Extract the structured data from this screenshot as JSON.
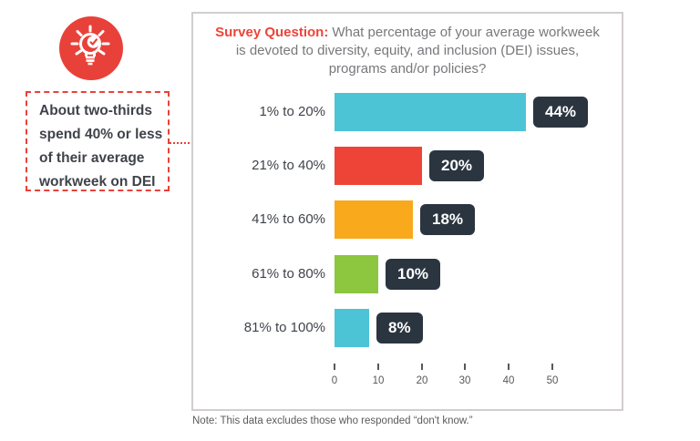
{
  "callout": {
    "icon": "lightbulb-check-icon",
    "text": "About two-thirds spend 40% or less of their average workweek on DEI"
  },
  "survey": {
    "title_prefix": "Survey Question:",
    "title_text": "What percentage of your average workweek is devoted to diversity, equity, and inclusion (DEI) issues, programs and/or policies?",
    "note": "Note: This data excludes those who responded “don't know.”"
  },
  "chart_data": {
    "type": "bar",
    "orientation": "horizontal",
    "title": "Survey Question: What percentage of your average workweek is devoted to diversity, equity, and inclusion (DEI) issues, programs and/or policies?",
    "categories": [
      "1% to 20%",
      "21% to 40%",
      "41% to 60%",
      "61% to 80%",
      "81% to 100%"
    ],
    "values": [
      44,
      20,
      18,
      10,
      8
    ],
    "value_labels": [
      "44%",
      "20%",
      "18%",
      "10%",
      "8%"
    ],
    "bar_colors": [
      "#4DC3D6",
      "#EE4438",
      "#F9A91C",
      "#8DC63F",
      "#4DC3D6"
    ],
    "badge_color": "#2B3540",
    "x_ticks": [
      0,
      10,
      20,
      30,
      40,
      50
    ],
    "xlim": [
      0,
      66
    ],
    "grid": false,
    "legend": false,
    "highlighted_categories": [
      "1% to 20%",
      "21% to 40%"
    ]
  },
  "colors": {
    "accent_red": "#E8413A",
    "title_gray": "#77787B",
    "label_dark": "#3F434A",
    "panel_border": "#D2CECD"
  }
}
